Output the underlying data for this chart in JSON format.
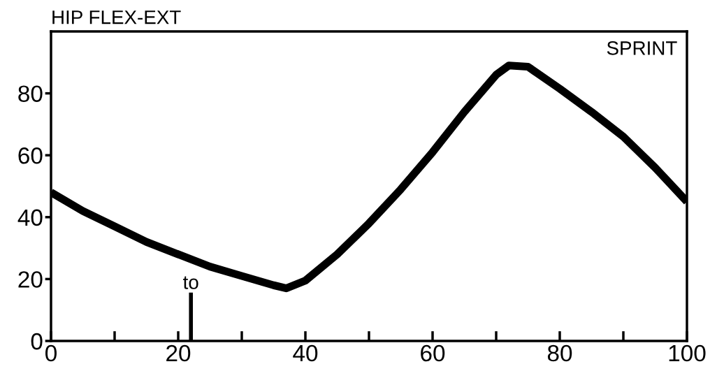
{
  "chart_data": {
    "type": "line",
    "title": "HIP FLEX-EXT",
    "x": [
      0,
      5,
      10,
      15,
      20,
      25,
      30,
      35,
      37,
      40,
      45,
      50,
      55,
      60,
      65,
      70,
      72,
      75,
      80,
      85,
      90,
      95,
      100
    ],
    "series": [
      {
        "color": "#000000",
        "values": [
          48,
          42,
          37,
          32,
          28,
          24,
          21,
          18,
          17,
          19.5,
          28,
          38,
          49,
          61,
          74,
          86,
          89,
          88.6,
          81.5,
          74,
          66,
          56,
          45
        ]
      }
    ],
    "xlim": [
      0,
      100
    ],
    "ylim": [
      0,
      100
    ],
    "xticks": [
      0,
      {
        "value": 10,
        "label": null
      },
      20,
      {
        "value": 30,
        "label": null
      },
      40,
      {
        "value": 50,
        "label": null
      },
      60,
      {
        "value": 70,
        "label": null
      },
      80,
      {
        "value": 90,
        "label": null
      },
      100
    ],
    "yticks": [
      0,
      20,
      40,
      60,
      80
    ],
    "annotations": [
      "SPRINT"
    ],
    "ref_lines": [
      {
        "axis": "x",
        "value": 22,
        "label": "to"
      }
    ],
    "grid": false,
    "legend": false,
    "marker": "none",
    "line_style": "solid"
  }
}
